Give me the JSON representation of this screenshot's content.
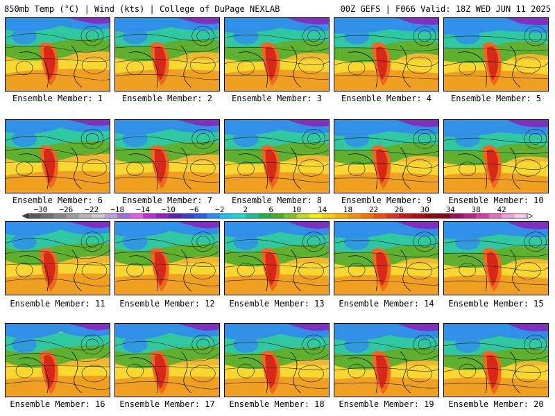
{
  "header": {
    "left": "850mb Temp (°C) | Wind (kts) | College of DuPage NEXLAB",
    "right": "00Z GEFS | F066 Valid: 18Z WED JUN 11 2025"
  },
  "members": [
    "Ensemble Member: 1",
    "Ensemble Member: 2",
    "Ensemble Member: 3",
    "Ensemble Member: 4",
    "Ensemble Member: 5",
    "Ensemble Member: 6",
    "Ensemble Member: 7",
    "Ensemble Member: 8",
    "Ensemble Member: 9",
    "Ensemble Member: 10",
    "Ensemble Member: 11",
    "Ensemble Member: 12",
    "Ensemble Member: 13",
    "Ensemble Member: 14",
    "Ensemble Member: 15",
    "Ensemble Member: 16",
    "Ensemble Member: 17",
    "Ensemble Member: 18",
    "Ensemble Member: 19",
    "Ensemble Member: 20"
  ],
  "colorbar": {
    "tick_labels": [
      "-30",
      "-26",
      "-22",
      "-18",
      "-14",
      "-10",
      "-6",
      "-2",
      "2",
      "6",
      "10",
      "14",
      "18",
      "22",
      "26",
      "30",
      "34",
      "38",
      "42"
    ],
    "colors": [
      "#5a5a5a",
      "#707070",
      "#868686",
      "#9c9c9c",
      "#b4b4b4",
      "#c9c9c9",
      "#bca0e0",
      "#a070d8",
      "#e060e8",
      "#c030d0",
      "#9020c0",
      "#6020b0",
      "#4040c8",
      "#2c60e0",
      "#2a90f0",
      "#20c0f0",
      "#20d8c8",
      "#20c090",
      "#20b050",
      "#40b020",
      "#80c020",
      "#c0d820",
      "#f0f000",
      "#f8d000",
      "#f8b000",
      "#f89000",
      "#f87000",
      "#f05000",
      "#e03020",
      "#c81818",
      "#b01010",
      "#900c0c",
      "#800818",
      "#a01060",
      "#c02080",
      "#d040a0",
      "#e070c0",
      "#f0a0d8",
      "#f8c8e8"
    ]
  },
  "palette": {
    "ocean_warm": "#f0b830",
    "ocean_mid": "#f8d830",
    "land_green": "#60b030",
    "land_teal": "#30c8a0",
    "cold_blue": "#3090e8",
    "cold_purple": "#8030c0",
    "hot_red": "#d82818",
    "hot_orange": "#f06820"
  }
}
